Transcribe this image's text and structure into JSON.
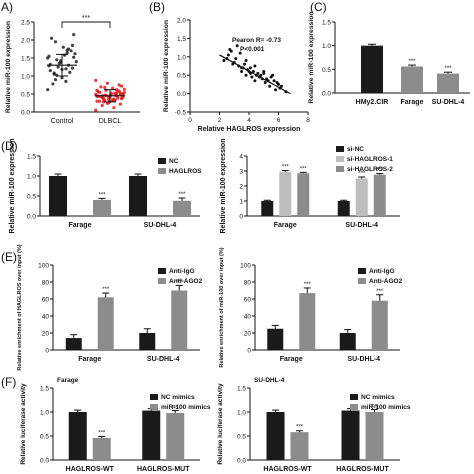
{
  "panel_letters": [
    "A)",
    "(B)",
    "(C)",
    "(D)",
    "(E)",
    "(F)"
  ],
  "chart_data": [
    {
      "id": "A",
      "type": "scatter",
      "ylabel": "Relative miR-100 expression",
      "ylim": [
        0,
        2.5
      ],
      "yticks": [
        "0.0",
        "0.5",
        "1.0",
        "1.5",
        "2.0",
        "2.5"
      ],
      "categories": [
        "Control",
        "DLBCL"
      ],
      "means": [
        1.3,
        0.45
      ],
      "sd": [
        0.3,
        0.17
      ],
      "colors": [
        "#222222",
        "#e31a1c"
      ],
      "significance": "***",
      "points": [
        [
          0.62,
          0.85,
          1.05,
          1.22,
          1.38,
          1.55,
          1.72,
          1.95,
          2.15,
          0.95,
          1.15,
          1.3,
          1.45,
          1.62,
          1.8,
          2.05,
          1.1,
          1.25,
          1.4,
          1.58,
          0.78,
          1.7,
          1.35,
          1.5,
          1.2,
          1.08,
          1.85,
          1.42,
          1.28,
          1.65,
          0.9,
          1.52,
          1.18,
          1.32,
          1.75,
          1.02
        ],
        [
          0.05,
          0.12,
          0.18,
          0.22,
          0.26,
          0.3,
          0.33,
          0.36,
          0.38,
          0.41,
          0.43,
          0.45,
          0.47,
          0.5,
          0.52,
          0.55,
          0.58,
          0.6,
          0.63,
          0.66,
          0.7,
          0.75,
          0.8,
          0.88,
          0.32,
          0.4,
          0.48,
          0.35,
          0.44,
          0.52,
          0.28,
          0.37,
          0.46,
          0.56,
          0.62,
          0.68,
          0.42,
          0.5,
          0.3,
          0.39,
          0.46,
          0.54,
          0.34,
          0.43,
          0.58,
          0.24,
          0.49,
          0.36,
          0.45,
          0.53,
          0.41,
          0.6,
          0.47,
          0.38,
          0.72,
          0.29,
          0.44,
          0.51,
          0.33,
          0.48
        ]
      ]
    },
    {
      "id": "B",
      "type": "scatter",
      "ylabel": "Relative miR-100 expression",
      "xlabel": "Relative HAGLROS expression",
      "xlim": [
        0,
        8
      ],
      "ylim": [
        -0.5,
        2.0
      ],
      "xticks": [
        "0",
        "2",
        "4",
        "6",
        "8"
      ],
      "yticks": [
        "-0.5",
        "0.0",
        "0.5",
        "1.0",
        "1.5",
        "2.0"
      ],
      "annotation": [
        "Pearon R= -0.73",
        "P<0.001"
      ],
      "fit": {
        "x": [
          2.0,
          6.8
        ],
        "y": [
          1.05,
          0.0
        ]
      },
      "points": {
        "x": [
          2.3,
          2.6,
          2.9,
          3.2,
          3.5,
          3.8,
          4.1,
          4.4,
          4.7,
          5.0,
          5.3,
          5.6,
          5.9,
          6.2,
          6.5,
          2.5,
          3.0,
          3.4,
          3.9,
          4.3,
          4.8,
          5.2,
          5.7,
          6.1,
          2.8,
          3.3,
          3.7,
          4.2,
          4.6,
          5.1,
          5.5,
          6.0,
          3.1,
          3.6,
          4.0,
          4.5,
          4.9,
          5.4,
          2.7,
          3.5,
          4.4,
          5.8,
          4.1,
          3.8,
          5.0
        ],
        "y": [
          0.9,
          1.05,
          0.8,
          1.3,
          0.7,
          0.9,
          0.55,
          0.75,
          0.45,
          0.6,
          0.35,
          0.5,
          0.3,
          0.2,
          0.05,
          0.95,
          0.85,
          1.1,
          0.65,
          0.6,
          0.5,
          0.4,
          0.35,
          0.15,
          1.15,
          0.75,
          0.8,
          0.45,
          0.55,
          0.3,
          0.45,
          0.25,
          0.95,
          0.7,
          0.6,
          0.5,
          0.4,
          0.2,
          1.2,
          0.6,
          0.35,
          0.1,
          0.7,
          0.5,
          0.55
        ]
      }
    },
    {
      "id": "C",
      "type": "bar",
      "ylabel": "Relative miR-100 expression",
      "ylim": [
        0,
        1.5
      ],
      "yticks": [
        "0.0",
        "0.5",
        "1.0",
        "1.5"
      ],
      "categories": [
        "HMy2.CIR",
        "Farage",
        "SU-DHL-4"
      ],
      "values": [
        1.0,
        0.56,
        0.41
      ],
      "errors": [
        0.03,
        0.03,
        0.03
      ],
      "colors": [
        "#1a1a1a",
        "#8c8c8c",
        "#8c8c8c"
      ],
      "significance": [
        "",
        "***",
        "***"
      ]
    },
    {
      "id": "D1",
      "type": "bar",
      "ylabel": "Relative miR-100 expression",
      "ylim": [
        0,
        1.5
      ],
      "yticks": [
        "0.0",
        "0.5",
        "1.0",
        "1.5"
      ],
      "categories": [
        "Farage",
        "SU-DHL-4"
      ],
      "series": [
        {
          "name": "NC",
          "color": "#1a1a1a",
          "values": [
            1.0,
            1.0
          ],
          "errors": [
            0.05,
            0.05
          ],
          "sig": [
            "",
            ""
          ]
        },
        {
          "name": "HAGLROS",
          "color": "#8c8c8c",
          "values": [
            0.4,
            0.38
          ],
          "errors": [
            0.04,
            0.07
          ],
          "sig": [
            "***",
            "***"
          ]
        }
      ],
      "legend": "top-right"
    },
    {
      "id": "D2",
      "type": "bar",
      "ylabel": "Relative miR-100 expression",
      "ylim": [
        0,
        4
      ],
      "yticks": [
        "0",
        "1",
        "2",
        "3",
        "4"
      ],
      "categories": [
        "Farage",
        "SU-DHL-4"
      ],
      "series": [
        {
          "name": "si-NC",
          "color": "#1a1a1a",
          "values": [
            1.0,
            1.0
          ],
          "errors": [
            0.05,
            0.05
          ],
          "sig": [
            "",
            ""
          ]
        },
        {
          "name": "si-HAGLROS-1",
          "color": "#bdbdbd",
          "values": [
            2.95,
            2.5
          ],
          "errors": [
            0.08,
            0.1
          ],
          "sig": [
            "***",
            "***"
          ]
        },
        {
          "name": "si-HAGLROS-2",
          "color": "#8c8c8c",
          "values": [
            2.85,
            2.75
          ],
          "errors": [
            0.06,
            0.08
          ],
          "sig": [
            "***",
            "***"
          ]
        }
      ],
      "legend": "top-right"
    },
    {
      "id": "E1",
      "type": "bar",
      "ylabel": "Relative enrichment of HAGLROS over input (%)",
      "ylim": [
        0,
        100
      ],
      "yticks": [
        "0",
        "20",
        "40",
        "60",
        "80",
        "100"
      ],
      "categories": [
        "Farage",
        "SU-DHL-4"
      ],
      "series": [
        {
          "name": "Anti-IgG",
          "color": "#1a1a1a",
          "values": [
            14,
            20
          ],
          "errors": [
            4,
            5
          ],
          "sig": [
            "",
            ""
          ]
        },
        {
          "name": "Anti-AGO2",
          "color": "#8c8c8c",
          "values": [
            62,
            70
          ],
          "errors": [
            5,
            6
          ],
          "sig": [
            "***",
            "***"
          ]
        }
      ],
      "legend": "top-right"
    },
    {
      "id": "E2",
      "type": "bar",
      "ylabel": "Relative enrichment of miR-100 over input (%)",
      "ylim": [
        0,
        100
      ],
      "yticks": [
        "0",
        "20",
        "40",
        "60",
        "80",
        "100"
      ],
      "categories": [
        "Farage",
        "SU-DHL-4"
      ],
      "series": [
        {
          "name": "Anti-IgG",
          "color": "#1a1a1a",
          "values": [
            25,
            20
          ],
          "errors": [
            4,
            4
          ],
          "sig": [
            "",
            ""
          ]
        },
        {
          "name": "Anti-AGO2",
          "color": "#8c8c8c",
          "values": [
            67,
            58
          ],
          "errors": [
            6,
            7
          ],
          "sig": [
            "***",
            "***"
          ]
        }
      ],
      "legend": "top-right"
    },
    {
      "id": "F1",
      "type": "bar",
      "title": "Farage",
      "ylabel": "Relative luciferase activity",
      "ylim": [
        0,
        1.5
      ],
      "yticks": [
        "0.0",
        "0.5",
        "1.0",
        "1.5"
      ],
      "categories": [
        "HAGLROS-WT",
        "HAGLROS-MUT"
      ],
      "series": [
        {
          "name": "NC mimics",
          "color": "#1a1a1a",
          "values": [
            1.0,
            1.03
          ],
          "errors": [
            0.04,
            0.04
          ],
          "sig": [
            "",
            ""
          ]
        },
        {
          "name": "miR-100 mimics",
          "color": "#8c8c8c",
          "values": [
            0.46,
            0.98
          ],
          "errors": [
            0.03,
            0.05
          ],
          "sig": [
            "***",
            "ns"
          ]
        }
      ],
      "legend": "top-right"
    },
    {
      "id": "F2",
      "type": "bar",
      "title": "SU-DHL-4",
      "ylabel": "Relative luciferase activity",
      "ylim": [
        0,
        1.5
      ],
      "yticks": [
        "0.0",
        "0.5",
        "1.0",
        "1.5"
      ],
      "categories": [
        "HAGLROS-WT",
        "HAGLROS-MUT"
      ],
      "series": [
        {
          "name": "NC mimics",
          "color": "#1a1a1a",
          "values": [
            1.0,
            1.03
          ],
          "errors": [
            0.04,
            0.04
          ],
          "sig": [
            "",
            ""
          ]
        },
        {
          "name": "miR-100 mimics",
          "color": "#8c8c8c",
          "values": [
            0.58,
            1.0
          ],
          "errors": [
            0.03,
            0.05
          ],
          "sig": [
            "***",
            "ns"
          ]
        }
      ],
      "legend": "top-right"
    }
  ]
}
